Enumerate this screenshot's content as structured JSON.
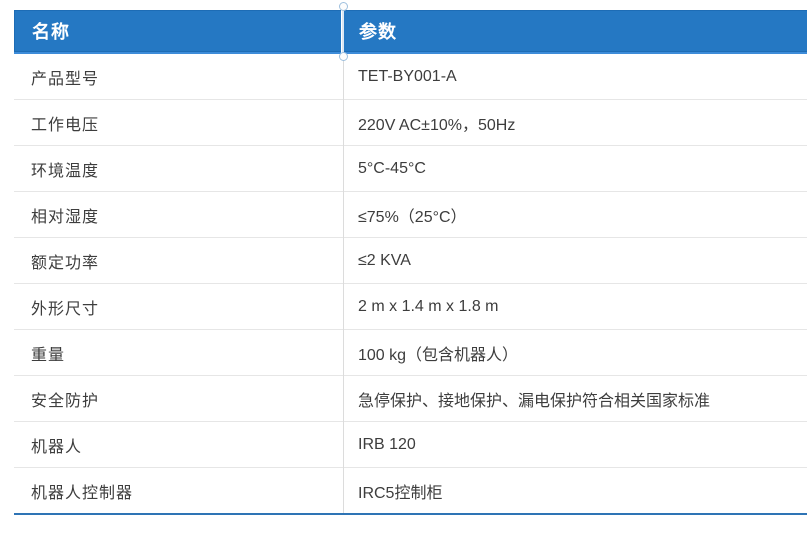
{
  "table": {
    "header": {
      "name": "名称",
      "param": "参数"
    },
    "rows": [
      {
        "name": "产品型号",
        "value": "TET-BY001-A"
      },
      {
        "name": "工作电压",
        "value": "220V AC±10%，50Hz"
      },
      {
        "name": "环境温度",
        "value": "5°C-45°C"
      },
      {
        "name": "相对湿度",
        "value": "≤75%（25°C）"
      },
      {
        "name": "额定功率",
        "value": "≤2 KVA"
      },
      {
        "name": "外形尺寸",
        "value": "2 m x 1.4 m x 1.8 m"
      },
      {
        "name": "重量",
        "value": "100 kg（包含机器人）"
      },
      {
        "name": "安全防护",
        "value": "急停保护、接地保护、漏电保护符合相关国家标准"
      },
      {
        "name": "机器人",
        "value": "IRB 120"
      },
      {
        "name": "机器人控制器",
        "value": "IRC5控制柜"
      }
    ],
    "colors": {
      "header_bg": "#2578C3",
      "header_text": "#FFFFFF",
      "header_border": "#1D6CB5",
      "header_bottom_accent": "#3D8CD9",
      "row_separator": "#E6E6E6",
      "table_bottom_line": "#2E74B5",
      "column_divider": "#DCDCDC",
      "body_text": "#3D3D3D"
    }
  }
}
